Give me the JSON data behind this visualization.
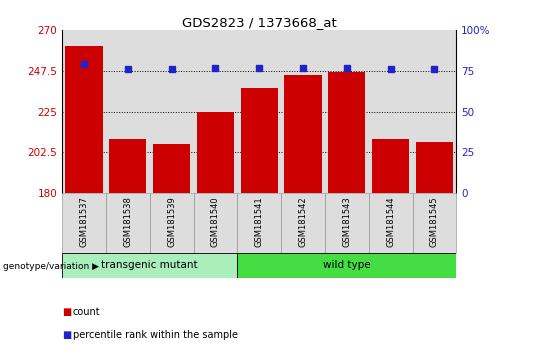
{
  "title": "GDS2823 / 1373668_at",
  "samples": [
    "GSM181537",
    "GSM181538",
    "GSM181539",
    "GSM181540",
    "GSM181541",
    "GSM181542",
    "GSM181543",
    "GSM181544",
    "GSM181545"
  ],
  "counts": [
    261,
    210,
    207,
    225,
    238,
    245,
    247,
    210,
    208
  ],
  "percentiles": [
    79,
    76,
    76,
    77,
    77,
    77,
    77,
    76,
    76
  ],
  "ylim_left": [
    180,
    270
  ],
  "ylim_right": [
    0,
    100
  ],
  "yticks_left": [
    180,
    202.5,
    225,
    247.5,
    270
  ],
  "yticks_right": [
    0,
    25,
    50,
    75,
    100
  ],
  "bar_color": "#cc0000",
  "dot_color": "#2222cc",
  "group1_label": "transgenic mutant",
  "group1_color": "#aaeebb",
  "group2_label": "wild type",
  "group2_color": "#44dd44",
  "group1_indices": [
    0,
    1,
    2,
    3
  ],
  "group2_indices": [
    4,
    5,
    6,
    7,
    8
  ],
  "legend_count_label": "count",
  "legend_pct_label": "percentile rank within the sample",
  "genotype_label": "genotype/variation",
  "col_bg": "#dddddd",
  "plot_bg": "#ffffff"
}
